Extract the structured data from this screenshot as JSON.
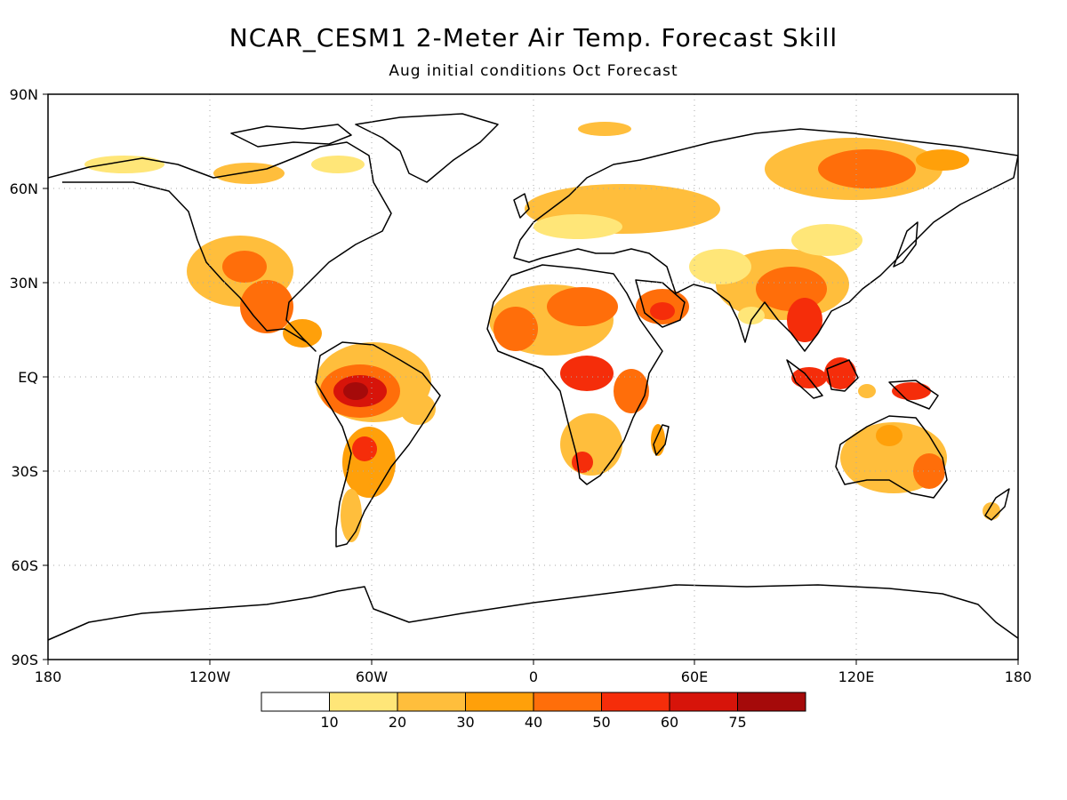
{
  "title": "NCAR_CESM1 2-Meter Air Temp. Forecast Skill",
  "subtitle": "Aug initial conditions  Oct Forecast",
  "axes": {
    "lat_labels": [
      "90N",
      "60N",
      "30N",
      "EQ",
      "30S",
      "60S",
      "90S"
    ],
    "lon_labels": [
      "180",
      "120W",
      "60W",
      "0",
      "60E",
      "120E",
      "180"
    ]
  },
  "colorbar": {
    "colors": [
      "#ffffff",
      "#ffe678",
      "#ffbe3c",
      "#ffa00a",
      "#ff6e0a",
      "#f52d0a",
      "#d7140a",
      "#a50a0a"
    ],
    "labels": [
      "10",
      "20",
      "30",
      "40",
      "50",
      "60",
      "75"
    ]
  },
  "palette": {
    "land_outline": "#000000",
    "grid": "#aaaaaa"
  }
}
